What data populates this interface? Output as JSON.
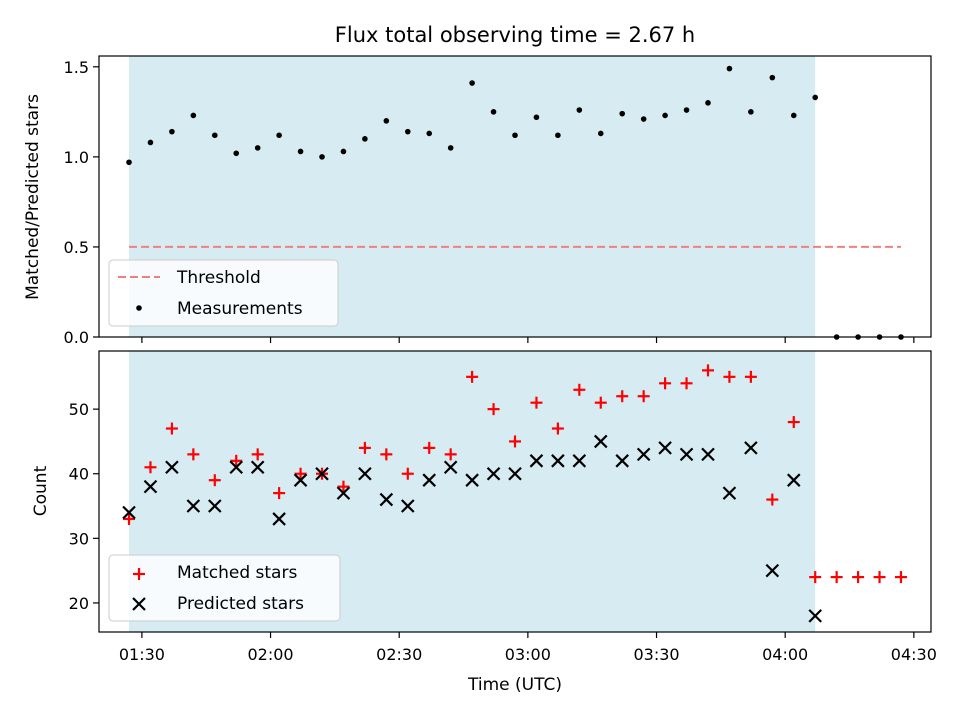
{
  "chart_data": [
    {
      "type": "scatter",
      "title": "Flux total observing time = 2.67 h",
      "ylabel": "Matched/Predicted stars",
      "ylim": [
        0,
        1.56
      ],
      "yticks": [
        "0.0",
        "0.5",
        "1.0",
        "1.5"
      ],
      "ytick_values": [
        0,
        0.5,
        1.0,
        1.5
      ],
      "observing_window": [
        "01:27",
        "04:07"
      ],
      "threshold": {
        "name": "Threshold",
        "value": 0.5,
        "x_range": [
          "01:27",
          "04:27"
        ],
        "color": "#f08080",
        "style": "dashed"
      },
      "series": [
        {
          "name": "Measurements",
          "color": "#000000",
          "marker": "dot",
          "x": [
            "01:27",
            "01:32",
            "01:37",
            "01:42",
            "01:47",
            "01:52",
            "01:57",
            "02:02",
            "02:07",
            "02:12",
            "02:17",
            "02:22",
            "02:27",
            "02:32",
            "02:37",
            "02:42",
            "02:47",
            "02:52",
            "02:57",
            "03:02",
            "03:07",
            "03:12",
            "03:17",
            "03:22",
            "03:27",
            "03:32",
            "03:37",
            "03:42",
            "03:47",
            "03:52",
            "03:57",
            "04:02",
            "04:07",
            "04:12",
            "04:17",
            "04:22",
            "04:27"
          ],
          "y": [
            0.97,
            1.08,
            1.14,
            1.23,
            1.12,
            1.02,
            1.05,
            1.12,
            1.03,
            1.0,
            1.03,
            1.1,
            1.2,
            1.14,
            1.13,
            1.05,
            1.41,
            1.25,
            1.12,
            1.22,
            1.12,
            1.26,
            1.13,
            1.24,
            1.21,
            1.23,
            1.26,
            1.3,
            1.49,
            1.25,
            1.44,
            1.23,
            1.33,
            0,
            0,
            0,
            0
          ]
        }
      ],
      "legend": "lower-left",
      "grid": false
    },
    {
      "type": "scatter",
      "xlabel": "Time (UTC)",
      "ylabel": "Count",
      "ylim": [
        15.5,
        59
      ],
      "yticks": [
        "20",
        "30",
        "40",
        "50"
      ],
      "ytick_values": [
        20,
        30,
        40,
        50
      ],
      "xlim": [
        "01:20",
        "04:34"
      ],
      "xticks": [
        "01:30",
        "02:00",
        "02:30",
        "03:00",
        "03:30",
        "04:00",
        "04:30"
      ],
      "observing_window": [
        "01:27",
        "04:07"
      ],
      "x": [
        "01:27",
        "01:32",
        "01:37",
        "01:42",
        "01:47",
        "01:52",
        "01:57",
        "02:02",
        "02:07",
        "02:12",
        "02:17",
        "02:22",
        "02:27",
        "02:32",
        "02:37",
        "02:42",
        "02:47",
        "02:52",
        "02:57",
        "03:02",
        "03:07",
        "03:12",
        "03:17",
        "03:22",
        "03:27",
        "03:32",
        "03:37",
        "03:42",
        "03:47",
        "03:52",
        "03:57",
        "04:02",
        "04:07",
        "04:12",
        "04:17",
        "04:22",
        "04:27"
      ],
      "series": [
        {
          "name": "Matched stars",
          "color": "#ff0000",
          "marker": "plus",
          "values": [
            33,
            41,
            47,
            43,
            39,
            42,
            43,
            37,
            40,
            40,
            38,
            44,
            43,
            40,
            44,
            43,
            55,
            50,
            45,
            51,
            47,
            53,
            51,
            52,
            52,
            54,
            54,
            56,
            55,
            55,
            36,
            48,
            24,
            24,
            24,
            24,
            24
          ]
        },
        {
          "name": "Predicted stars",
          "color": "#000000",
          "marker": "x",
          "values": [
            34,
            38,
            41,
            35,
            35,
            41,
            41,
            33,
            39,
            40,
            37,
            40,
            36,
            35,
            39,
            41,
            39,
            40,
            40,
            42,
            42,
            42,
            45,
            42,
            43,
            44,
            43,
            43,
            37,
            44,
            25,
            39,
            18,
            null,
            null,
            null,
            null
          ]
        }
      ],
      "legend": "lower-left",
      "grid": false
    }
  ],
  "colors": {
    "observing_window_fill": "#add8e6"
  }
}
